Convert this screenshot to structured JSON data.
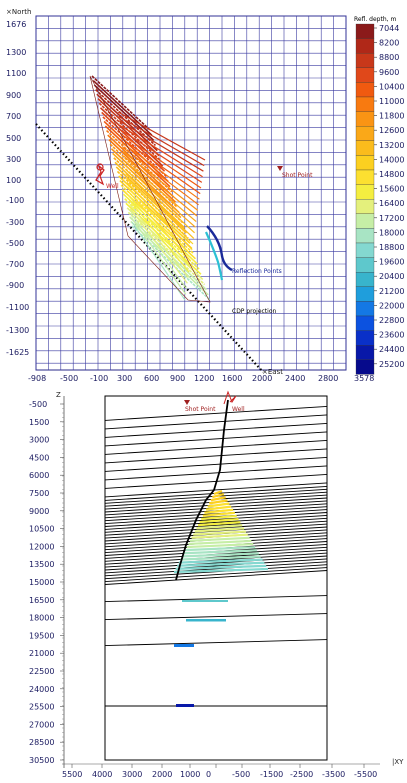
{
  "map_view": {
    "north_label": "North",
    "east_label": "East",
    "y_ticks": [
      "1676",
      "1300",
      "1100",
      "900",
      "700",
      "500",
      "300",
      "100",
      "-100",
      "-300",
      "-500",
      "-700",
      "-900",
      "-1100",
      "-1300",
      "-1625"
    ],
    "x_ticks": [
      "-908",
      "-500",
      "-100",
      "300",
      "600",
      "900",
      "1200",
      "1600",
      "2000",
      "2400",
      "2800",
      "3578"
    ],
    "annotations": {
      "well": "Well",
      "shot_point": "Shot Point",
      "reflection_points": "Reflection Points",
      "cdp_projection": "CDP projection"
    }
  },
  "legend": {
    "title": "Refl. depth, m",
    "levels": [
      "7044",
      "8200",
      "8800",
      "9600",
      "10400",
      "11000",
      "11800",
      "12600",
      "13200",
      "14000",
      "14800",
      "15600",
      "16400",
      "17200",
      "18000",
      "18800",
      "19600",
      "20400",
      "21200",
      "22000",
      "22800",
      "23600",
      "24400",
      "25200"
    ],
    "colors": [
      "#8b1a1a",
      "#b02818",
      "#c8381a",
      "#e0481a",
      "#f05a10",
      "#f87a10",
      "#fa9414",
      "#faa818",
      "#fbbc1c",
      "#fcd020",
      "#fce030",
      "#f4ee40",
      "#e4f07c",
      "#c6eea6",
      "#a8e4c4",
      "#84d8d0",
      "#5ec8cc",
      "#38b4cc",
      "#1f9edc",
      "#1478e4",
      "#0c52e0",
      "#0a30c8",
      "#0818a8",
      "#060a8c"
    ]
  },
  "section_view": {
    "z_label": "Z",
    "xy_label": "XY",
    "z_ticks": [
      "-500",
      "1500",
      "3000",
      "4500",
      "6000",
      "7500",
      "9000",
      "10500",
      "12000",
      "13500",
      "15000",
      "16500",
      "18000",
      "19500",
      "21000",
      "22500",
      "24000",
      "25500",
      "27000",
      "28500",
      "30500"
    ],
    "x_ticks": [
      "5500",
      "4000",
      "3000",
      "2000",
      "1000",
      "0",
      "-500",
      "-1500",
      "-2500",
      "-3500",
      "-5500"
    ],
    "annotations": {
      "shot_point": "Shot Point",
      "well": "Well"
    }
  }
}
